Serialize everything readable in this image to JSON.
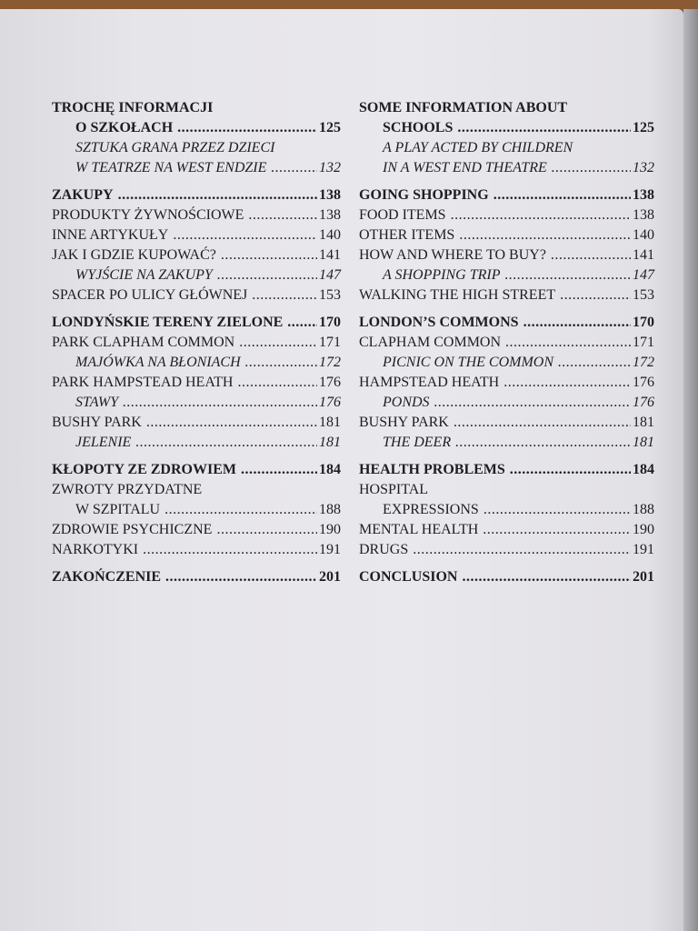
{
  "left": {
    "groups": [
      [
        {
          "text": "TROCHĘ INFORMACJI",
          "page": null,
          "style": "bold",
          "indent": false
        },
        {
          "text": "O SZKOŁACH",
          "page": "125",
          "style": "bold",
          "indent": true
        },
        {
          "text": "SZTUKA GRANA PRZEZ DZIECI",
          "page": null,
          "style": "italic",
          "indent": true
        },
        {
          "text": "W TEATRZE NA WEST ENDZIE",
          "page": "132",
          "style": "italic",
          "indent": true
        }
      ],
      [
        {
          "text": "ZAKUPY",
          "page": "138",
          "style": "bold",
          "indent": false
        },
        {
          "text": "PRODUKTY ŻYWNOŚCIOWE",
          "page": "138",
          "style": "normal",
          "indent": false
        },
        {
          "text": "INNE ARTYKUŁY",
          "page": "140",
          "style": "normal",
          "indent": false
        },
        {
          "text": "JAK I GDZIE KUPOWAĆ?",
          "page": "141",
          "style": "normal",
          "indent": false
        },
        {
          "text": "WYJŚCIE NA ZAKUPY",
          "page": "147",
          "style": "italic",
          "indent": true
        },
        {
          "text": "SPACER PO ULICY GŁÓWNEJ",
          "page": "153",
          "style": "normal",
          "indent": false
        }
      ],
      [
        {
          "text": "LONDYŃSKIE TERENY ZIELONE",
          "page": "170",
          "style": "bold",
          "indent": false
        },
        {
          "text": "PARK CLAPHAM COMMON",
          "page": "171",
          "style": "normal",
          "indent": false
        },
        {
          "text": "MAJÓWKA NA BŁONIACH",
          "page": "172",
          "style": "italic",
          "indent": true
        },
        {
          "text": "PARK HAMPSTEAD HEATH",
          "page": "176",
          "style": "normal",
          "indent": false
        },
        {
          "text": "STAWY",
          "page": "176",
          "style": "italic",
          "indent": true
        },
        {
          "text": "BUSHY PARK",
          "page": "181",
          "style": "normal",
          "indent": false
        },
        {
          "text": "JELENIE",
          "page": "181",
          "style": "italic",
          "indent": true
        }
      ],
      [
        {
          "text": "KŁOPOTY ZE ZDROWIEM",
          "page": "184",
          "style": "bold",
          "indent": false
        },
        {
          "text": "ZWROTY PRZYDATNE",
          "page": null,
          "style": "normal",
          "indent": false
        },
        {
          "text": "W SZPITALU",
          "page": "188",
          "style": "normal",
          "indent": true
        },
        {
          "text": "ZDROWIE PSYCHICZNE",
          "page": "190",
          "style": "normal",
          "indent": false
        },
        {
          "text": "NARKOTYKI",
          "page": "191",
          "style": "normal",
          "indent": false
        }
      ],
      [
        {
          "text": "ZAKOŃCZENIE",
          "page": "201",
          "style": "bold",
          "indent": false
        }
      ]
    ]
  },
  "right": {
    "groups": [
      [
        {
          "text": "SOME INFORMATION ABOUT",
          "page": null,
          "style": "bold",
          "indent": false
        },
        {
          "text": "SCHOOLS",
          "page": "125",
          "style": "bold",
          "indent": true
        },
        {
          "text": "A PLAY ACTED BY CHILDREN",
          "page": null,
          "style": "italic",
          "indent": true
        },
        {
          "text": "IN A WEST END THEATRE",
          "page": "132",
          "style": "italic",
          "indent": true
        }
      ],
      [
        {
          "text": "GOING SHOPPING",
          "page": "138",
          "style": "bold",
          "indent": false
        },
        {
          "text": "FOOD ITEMS",
          "page": "138",
          "style": "normal",
          "indent": false
        },
        {
          "text": "OTHER ITEMS",
          "page": "140",
          "style": "normal",
          "indent": false
        },
        {
          "text": "HOW AND WHERE TO BUY?",
          "page": "141",
          "style": "normal",
          "indent": false
        },
        {
          "text": "A SHOPPING TRIP",
          "page": "147",
          "style": "italic",
          "indent": true
        },
        {
          "text": "WALKING THE HIGH STREET",
          "page": "153",
          "style": "normal",
          "indent": false
        }
      ],
      [
        {
          "text": "LONDON’S COMMONS",
          "page": "170",
          "style": "bold",
          "indent": false
        },
        {
          "text": "CLAPHAM COMMON",
          "page": "171",
          "style": "normal",
          "indent": false
        },
        {
          "text": "PICNIC ON THE COMMON",
          "page": "172",
          "style": "italic",
          "indent": true
        },
        {
          "text": "HAMPSTEAD HEATH",
          "page": "176",
          "style": "normal",
          "indent": false
        },
        {
          "text": "PONDS",
          "page": "176",
          "style": "italic",
          "indent": true
        },
        {
          "text": "BUSHY PARK",
          "page": "181",
          "style": "normal",
          "indent": false
        },
        {
          "text": "THE DEER",
          "page": "181",
          "style": "italic",
          "indent": true
        }
      ],
      [
        {
          "text": "HEALTH PROBLEMS",
          "page": "184",
          "style": "bold",
          "indent": false
        },
        {
          "text": "HOSPITAL",
          "page": null,
          "style": "normal",
          "indent": false
        },
        {
          "text": "EXPRESSIONS",
          "page": "188",
          "style": "normal",
          "indent": true
        },
        {
          "text": "MENTAL HEALTH",
          "page": "190",
          "style": "normal",
          "indent": false
        },
        {
          "text": "DRUGS",
          "page": "191",
          "style": "normal",
          "indent": false
        }
      ],
      [
        {
          "text": "CONCLUSION",
          "page": "201",
          "style": "bold",
          "indent": false
        }
      ]
    ]
  }
}
